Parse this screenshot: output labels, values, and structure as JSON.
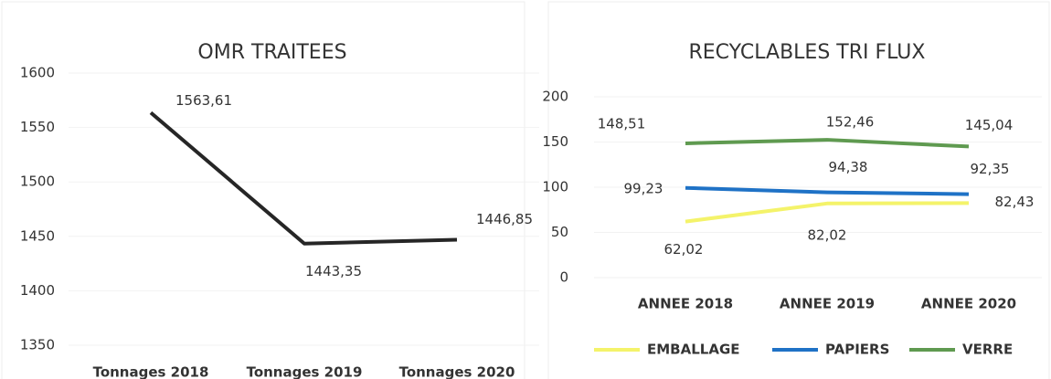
{
  "chart_data": [
    {
      "type": "line",
      "title": "OMR TRAITEES",
      "categories": [
        "Tonnages 2018",
        "Tonnages 2019",
        "Tonnages 2020"
      ],
      "values": [
        1563.61,
        1443.35,
        1446.85
      ],
      "value_labels": [
        "1563,61",
        "1443,35",
        "1446,85"
      ],
      "color": "#262626",
      "ylim": [
        1350,
        1600
      ],
      "yticks": [
        1350,
        1400,
        1450,
        1500,
        1550,
        1600
      ],
      "grid": true
    },
    {
      "type": "line",
      "title": "RECYCLABLES TRI FLUX",
      "categories": [
        "ANNEE 2018",
        "ANNEE 2019",
        "ANNEE 2020"
      ],
      "series": [
        {
          "name": "EMBALLAGE",
          "color": "#f4f36a",
          "values": [
            62.02,
            82.02,
            82.43
          ],
          "value_labels": [
            "62,02",
            "82,02",
            "82,43"
          ]
        },
        {
          "name": "PAPIERS",
          "color": "#1f72c6",
          "values": [
            99.23,
            94.38,
            92.35
          ],
          "value_labels": [
            "99,23",
            "94,38",
            "92,35"
          ]
        },
        {
          "name": "VERRE",
          "color": "#5f9a50",
          "values": [
            148.51,
            152.46,
            145.04
          ],
          "value_labels": [
            "148,51",
            "152,46",
            "145,04"
          ]
        }
      ],
      "ylim": [
        0,
        200
      ],
      "yticks": [
        0,
        50,
        100,
        150,
        200
      ],
      "grid": true,
      "legend": "bottom"
    }
  ]
}
